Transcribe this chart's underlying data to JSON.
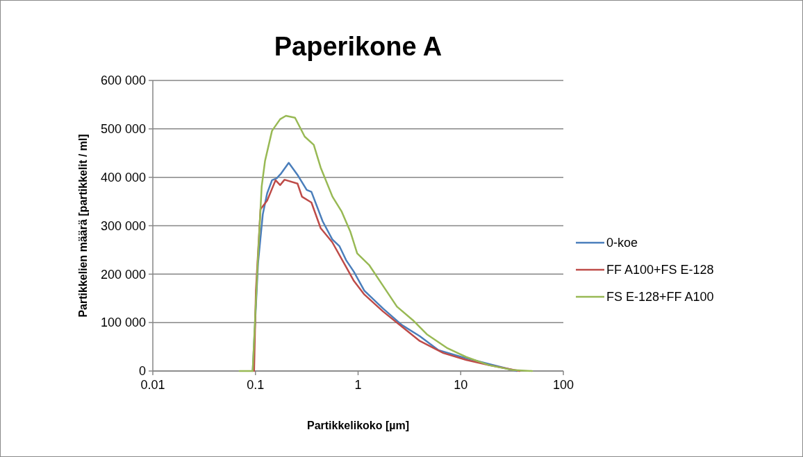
{
  "chart_data": {
    "type": "line",
    "title": "Paperikone A",
    "xlabel": "Partikkelikoko [µm]",
    "ylabel": "Partikkelien määrä [partikkelit / ml]",
    "log": "x",
    "xlim": [
      0.01,
      100
    ],
    "xticks": [
      0.01,
      0.1,
      1,
      10,
      100
    ],
    "ylim": [
      0,
      600000
    ],
    "yticks": [
      {
        "value": 0,
        "label": "0"
      },
      {
        "value": 100000,
        "label": "100 000"
      },
      {
        "value": 200000,
        "label": "200 000"
      },
      {
        "value": 300000,
        "label": "300 000"
      },
      {
        "value": 400000,
        "label": "400 000"
      },
      {
        "value": 500000,
        "label": "500 000"
      },
      {
        "value": 600000,
        "label": "600 000"
      }
    ],
    "grid": "y",
    "legend": "right",
    "marker": "none",
    "line_style": "solid",
    "series": [
      {
        "name": "0-koe",
        "color": "#4a7ebb",
        "x": [
          0.094,
          0.106,
          0.118,
          0.13,
          0.145,
          0.161,
          0.178,
          0.211,
          0.257,
          0.316,
          0.351,
          0.452,
          0.56,
          0.657,
          0.764,
          0.91,
          1.15,
          1.75,
          2.67,
          3.99,
          6.08,
          10.2,
          18.9,
          35.2
        ],
        "values": [
          0,
          223000,
          324000,
          367000,
          394000,
          398000,
          408000,
          430000,
          405000,
          374000,
          370000,
          309000,
          272000,
          258000,
          229000,
          205000,
          166000,
          129000,
          95000,
          72000,
          43000,
          29000,
          14300,
          0
        ]
      },
      {
        "name": "FF A100+FS E-128",
        "color": "#be4b48",
        "x": [
          0.097,
          0.101,
          0.112,
          0.13,
          0.157,
          0.174,
          0.192,
          0.257,
          0.284,
          0.351,
          0.432,
          0.56,
          0.764,
          0.91,
          1.15,
          1.75,
          2.39,
          3.99,
          6.78,
          11.3,
          18.9,
          37.5
        ],
        "values": [
          0,
          166000,
          334000,
          352000,
          394000,
          384000,
          395000,
          387000,
          360000,
          348000,
          295000,
          266000,
          215000,
          186000,
          158000,
          123000,
          100000,
          62000,
          37000,
          23000,
          12000,
          0
        ]
      },
      {
        "name": "FS E-128+FF A100",
        "color": "#98b954",
        "x": [
          0.07,
          0.094,
          0.101,
          0.106,
          0.115,
          0.124,
          0.145,
          0.174,
          0.198,
          0.243,
          0.302,
          0.37,
          0.432,
          0.563,
          0.689,
          0.843,
          0.98,
          1.28,
          1.75,
          2.39,
          3.42,
          4.67,
          7.44,
          11.3,
          18.9,
          32.1,
          49.6
        ],
        "values": [
          0,
          0,
          143000,
          238000,
          381000,
          434000,
          496000,
          520000,
          527000,
          523000,
          484000,
          467000,
          420000,
          360000,
          330000,
          287000,
          243000,
          219000,
          176000,
          133000,
          105000,
          76000,
          47000,
          29000,
          12000,
          2000,
          0
        ]
      }
    ]
  }
}
